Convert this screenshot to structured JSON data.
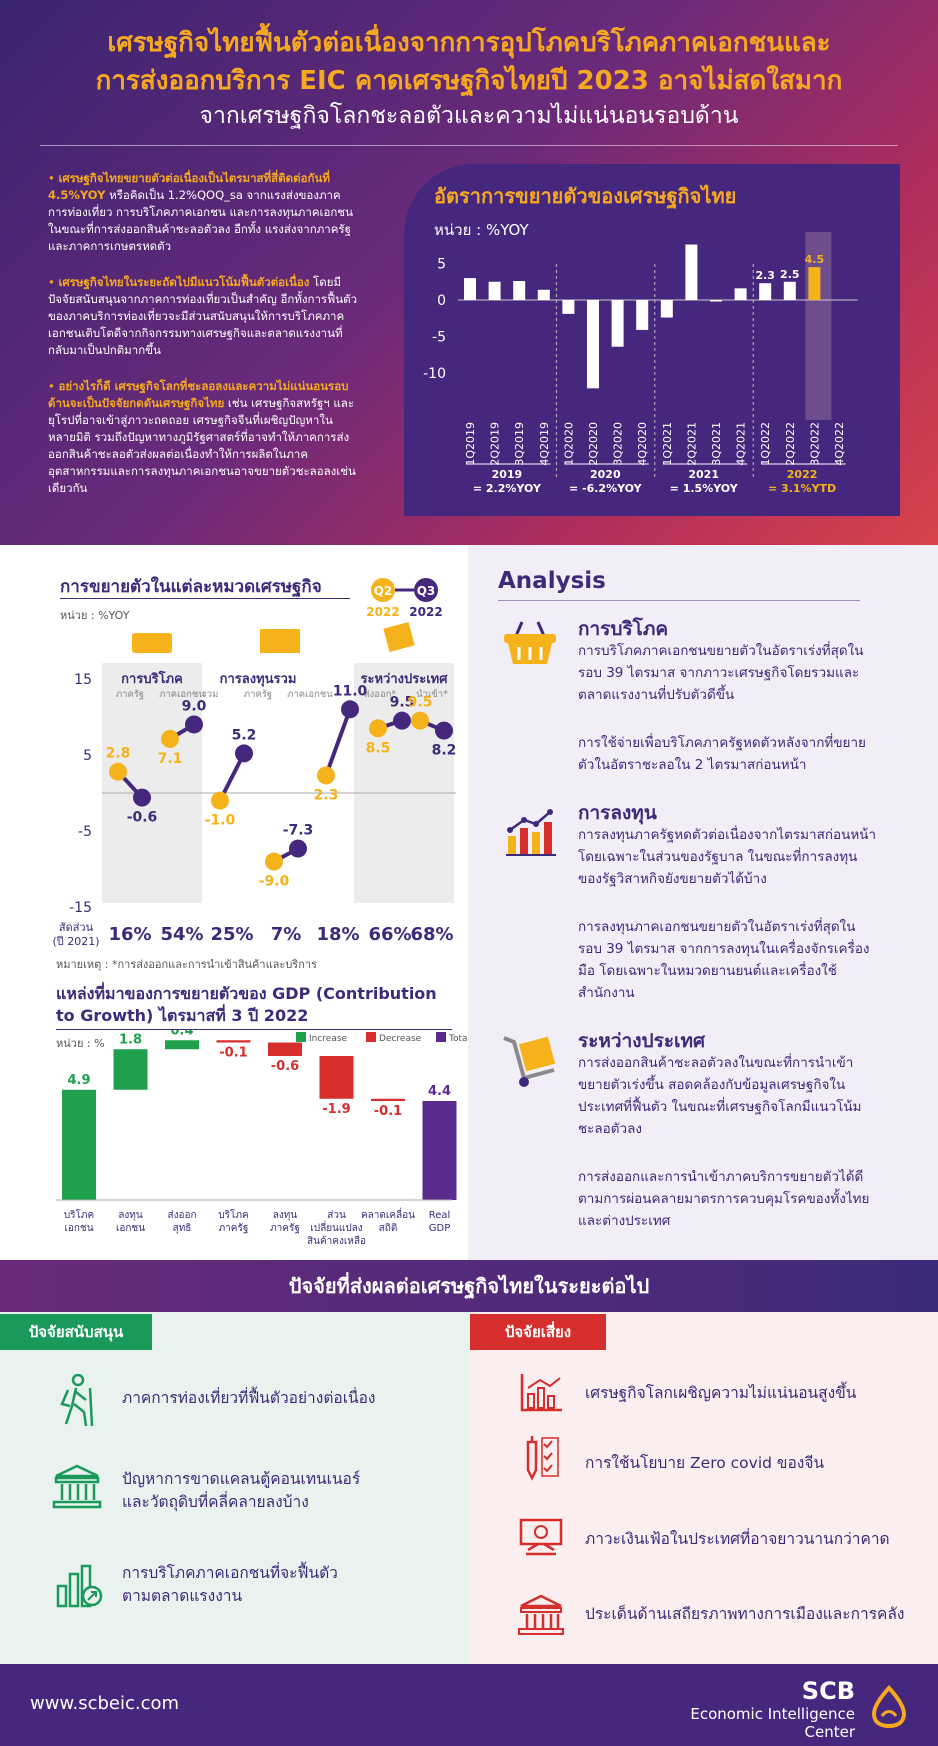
{
  "header": {
    "title_line1": "เศรษฐกิจไทยฟื้นตัวต่อเนื่องจากการอุปโภคบริโภคภาคเอกชนและ",
    "title_line2": "การส่งออกบริการ EIC คาดเศรษฐกิจไทยปี 2023 อาจไม่สดใสมาก",
    "subtitle": "จากเศรษฐกิจโลกชะลอตัวและความไม่แน่นอนรอบด้าน"
  },
  "bullets": [
    {
      "bold": "เศรษฐกิจไทยขยายตัวต่อเนื่องเป็นไตรมาสที่สี่ติดต่อกันที่ 4.5%YOY",
      "text": " หรือคิดเป็น 1.2%QOQ_sa จากแรงส่งของภาคการท่องเที่ยว การบริโภคภาคเอกชน และการลงทุนภาคเอกชน ในขณะที่การส่งออกสินค้าชะลอตัวลง อีกทั้ง แรงส่งจากภาครัฐและภาคการเกษตรหดตัว"
    },
    {
      "bold": "เศรษฐกิจไทยในระยะถัดไปมีแนวโน้มฟื้นตัวต่อเนื่อง",
      "text": " โดยมีปัจจัยสนับสนุนจากภาคการท่องเที่ยวเป็นสำคัญ อีกทั้งการฟื้นตัวของภาคบริการท่องเที่ยวจะมีส่วนสนับสนุนให้การบริโภคภาคเอกชนเติบโตดีจากกิจกรรมทางเศรษฐกิจและตลาดแรงงานที่กลับมาเป็นปกติมากขึ้น"
    },
    {
      "bold": "อย่างไรก็ดี เศรษฐกิจโลกที่ชะลอลงและความไม่แน่นอนรอบด้านจะเป็นปัจจัยกดดันเศรษฐกิจไทย",
      "text": " เช่น เศรษฐกิจสหรัฐฯ และยุโรปที่อาจเข้าสู่ภาวะถดถอย เศรษฐกิจจีนที่เผชิญปัญหาในหลายมิติ รวมถึงปัญหาทางภูมิรัฐศาสตร์ที่อาจทำให้ภาคการส่งออกสินค้าชะลอตัวส่งผลต่อเนื่องทำให้การผลิตในภาคอุตสาหกรรมและการลงทุนภาคเอกชนอาจขยายตัวชะลอลงเช่นเดียวกัน"
    }
  ],
  "chart_data": [
    {
      "type": "bar",
      "title": "อัตราการขยายตัวของเศรษฐกิจไทย",
      "unit": "หน่วย : %YOY",
      "categories": [
        "1Q2019",
        "2Q2019",
        "3Q2019",
        "4Q2019",
        "1Q2020",
        "2Q2020",
        "3Q2020",
        "4Q2020",
        "1Q2021",
        "2Q2021",
        "3Q2021",
        "4Q2021",
        "1Q2022",
        "2Q2022",
        "3Q2022",
        "4Q2022"
      ],
      "values": [
        3.0,
        2.5,
        2.6,
        1.4,
        -1.9,
        -12.1,
        -6.4,
        -4.1,
        -2.4,
        7.6,
        -0.2,
        1.6,
        2.3,
        2.5,
        4.5,
        null
      ],
      "data_labels": {
        "12": "2.3",
        "13": "2.5",
        "14": "4.5"
      },
      "yticks": [
        5,
        0,
        -5,
        -10
      ],
      "ylim": [
        -13,
        8
      ],
      "highlight_index": 14,
      "annual": [
        {
          "year": "2019",
          "value": "= 2.2%YOY"
        },
        {
          "year": "2020",
          "value": "= -6.2%YOY"
        },
        {
          "year": "2021",
          "value": "= 1.5%YOY"
        },
        {
          "year": "2022",
          "value": "= 3.1%YTD"
        }
      ]
    },
    {
      "type": "dumbbell",
      "title": "การขยายตัวในแต่ละหมวดเศรษฐกิจ",
      "unit": "หน่วย : %YOY",
      "legend": [
        {
          "name": "Q2",
          "sub": "2022",
          "color": "#f6b21b"
        },
        {
          "name": "Q3",
          "sub": "2022",
          "color": "#45287e"
        }
      ],
      "groups": [
        {
          "name": "การบริโภค",
          "subs": [
            "ภาครัฐ",
            "ภาคเอกชน"
          ]
        },
        {
          "name": "การลงทุนรวม",
          "subs": [
            "รวม",
            "ภาครัฐ",
            "ภาคเอกชน"
          ]
        },
        {
          "name": "ระหว่างประเทศ",
          "subs": [
            "ส่งออก*",
            "นำเข้า*"
          ]
        }
      ],
      "items": [
        {
          "q2": 2.8,
          "q3": -0.6,
          "share": "16%"
        },
        {
          "q2": 7.1,
          "q3": 9.0,
          "share": "54%"
        },
        {
          "q2": -1.0,
          "q3": 5.2,
          "share": "25%"
        },
        {
          "q2": -9.0,
          "q3": -7.3,
          "share": "7%"
        },
        {
          "q2": 2.3,
          "q3": 11.0,
          "share": "18%"
        },
        {
          "q2": 8.5,
          "q3": 9.5,
          "share": "66%"
        },
        {
          "q2": 9.5,
          "q3": 8.2,
          "share": "68%"
        }
      ],
      "yticks": [
        15,
        5,
        -5,
        -15
      ],
      "ylim": [
        -15,
        15
      ],
      "share_label": "สัดส่วน",
      "share_label2": "(ปี 2021)",
      "note": "หมายเหตุ : *การส่งออกและการนำเข้าสินค้าและบริการ"
    },
    {
      "type": "waterfall",
      "title1": "แหล่งที่มาของการขยายตัวของ GDP (Contribution",
      "title2": "to Growth) ไตรมาสที่ 3 ปี 2022",
      "unit": "หน่วย : %",
      "legend": [
        {
          "name": "Increase",
          "color": "#1fa04c"
        },
        {
          "name": "Decrease",
          "color": "#d62d2d"
        },
        {
          "name": "Total",
          "color": "#5b2a8c"
        }
      ],
      "steps": [
        {
          "label": "บริโภค\nเอกชน",
          "value": 4.9,
          "kind": "increase",
          "text": "4.9"
        },
        {
          "label": "ลงทุน\nเอกชน",
          "value": 1.8,
          "kind": "increase",
          "text": "1.8"
        },
        {
          "label": "ส่งออก\nสุทธิ",
          "value": 0.4,
          "kind": "increase",
          "text": "0.4"
        },
        {
          "label": "บริโภค\nภาครัฐ",
          "value": -0.1,
          "kind": "decrease",
          "text": "-0.1"
        },
        {
          "label": "ลงทุน\nภาครัฐ",
          "value": -0.6,
          "kind": "decrease",
          "text": "-0.6"
        },
        {
          "label": "ส่วน\nเปลี่ยนแปลง\nสินค้าคงเหลือ",
          "value": -1.9,
          "kind": "decrease",
          "text": "-1.9"
        },
        {
          "label": "คลาดเคลื่อน\nสถิติ",
          "value": -0.1,
          "kind": "decrease",
          "text": "-0.1"
        },
        {
          "label": "Real\nGDP",
          "value": 4.4,
          "kind": "total",
          "text": "4.4"
        }
      ]
    }
  ],
  "analysis": {
    "title": "Analysis",
    "sections": [
      {
        "heading": "การบริโภค",
        "icon": "basket-icon",
        "p1": "การบริโภคภาคเอกชนขยายตัวในอัตราเร่งที่สุดในรอบ 39 ไตรมาส จากภาวะเศรษฐกิจโดยรวมและตลาดแรงงานที่ปรับตัวดีขึ้น",
        "p2": "การใช้จ่ายเพื่อบริโภคภาครัฐหดตัวหลังจากที่ขยายตัวในอัตราชะลอใน 2 ไตรมาสก่อนหน้า"
      },
      {
        "heading": "การลงทุน",
        "icon": "investment-chart-icon",
        "p1": "การลงทุนภาครัฐหดตัวต่อเนื่องจากไตรมาสก่อนหน้า โดยเฉพาะในส่วนของรัฐบาล ในขณะที่การลงทุนของรัฐวิสาหกิจยังขยายตัวได้บ้าง",
        "p2": "การลงทุนภาคเอกชนขยายตัวในอัตราเร่งที่สุดในรอบ 39 ไตรมาส จากการลงทุนในเครื่องจักรเครื่องมือ โดยเฉพาะในหมวดยานยนต์และเครื่องใช้สำนักงาน"
      },
      {
        "heading": "ระหว่างประเทศ",
        "icon": "trolley-box-icon",
        "p1": "การส่งออกสินค้าชะลอตัวลงในขณะที่การนำเข้าขยายตัวเร่งขึ้น สอดคล้องกับข้อมูลเศรษฐกิจในประเทศที่ฟื้นตัว ในขณะที่เศรษฐกิจโลกมีแนวโน้มชะลอตัวลง",
        "p2": "การส่งออกและการนำเข้าภาคบริการขยายตัวได้ดีตามการผ่อนคลายมาตรการควบคุมโรคของทั้งไทยและต่างประเทศ"
      }
    ]
  },
  "factors": {
    "title": "ปัจจัยที่ส่งผลต่อเศรษฐกิจไทยในระยะต่อไป",
    "support_label": "ปัจจัยสนับสนุน",
    "risk_label": "ปัจจัยเสี่ยง",
    "support": [
      {
        "text": "ภาคการท่องเที่ยวที่ฟื้นตัวอย่างต่อเนื่อง",
        "icon": "hiker-icon"
      },
      {
        "text": "ปัญหาการขาดแคลนตู้คอนเทนเนอร์\nและวัตถุดิบที่คลี่คลายลงบ้าง",
        "icon": "bank-icon"
      },
      {
        "text": "การบริโภคภาคเอกชนที่จะฟื้นตัว\nตามตลาดแรงงาน",
        "icon": "growth-chart-icon"
      }
    ],
    "risk": [
      {
        "text": "เศรษฐกิจโลกเผชิญความไม่แน่นอนสูงขึ้น",
        "icon": "chart-icon"
      },
      {
        "text": "การใช้นโยบาย Zero covid ของจีน",
        "icon": "syringe-checklist-icon"
      },
      {
        "text": "ภาวะเงินเฟ้อในประเทศที่อาจยาวนานกว่าคาด",
        "icon": "money-icon"
      },
      {
        "text": "ประเด็นด้านเสถียรภาพทางการเมืองและการคลัง",
        "icon": "government-icon"
      }
    ]
  },
  "footer": {
    "url": "www.scbeic.com",
    "brand": "SCB",
    "brand_sub": "Economic Intelligence Center"
  }
}
